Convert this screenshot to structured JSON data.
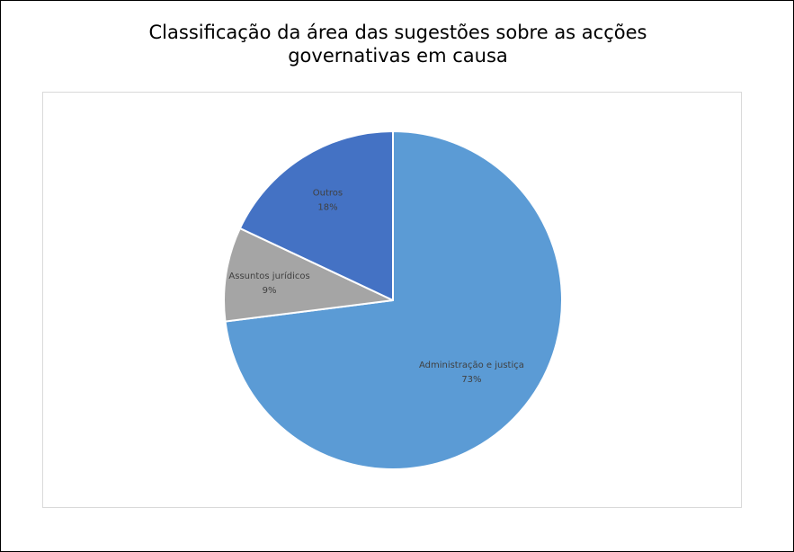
{
  "chart_data": {
    "type": "pie",
    "title": [
      "Classificação da área das sugestões sobre as acções",
      "governativas em causa"
    ],
    "legend": "none",
    "slices": [
      {
        "name": "Administração e justiça",
        "value": 73,
        "label": "73%",
        "color": "#5b9bd5"
      },
      {
        "name": "Assuntos jurídicos",
        "value": 9,
        "label": "9%",
        "color": "#a5a5a5"
      },
      {
        "name": "Outros",
        "value": 18,
        "label": "18%",
        "color": "#4472c4"
      }
    ]
  }
}
